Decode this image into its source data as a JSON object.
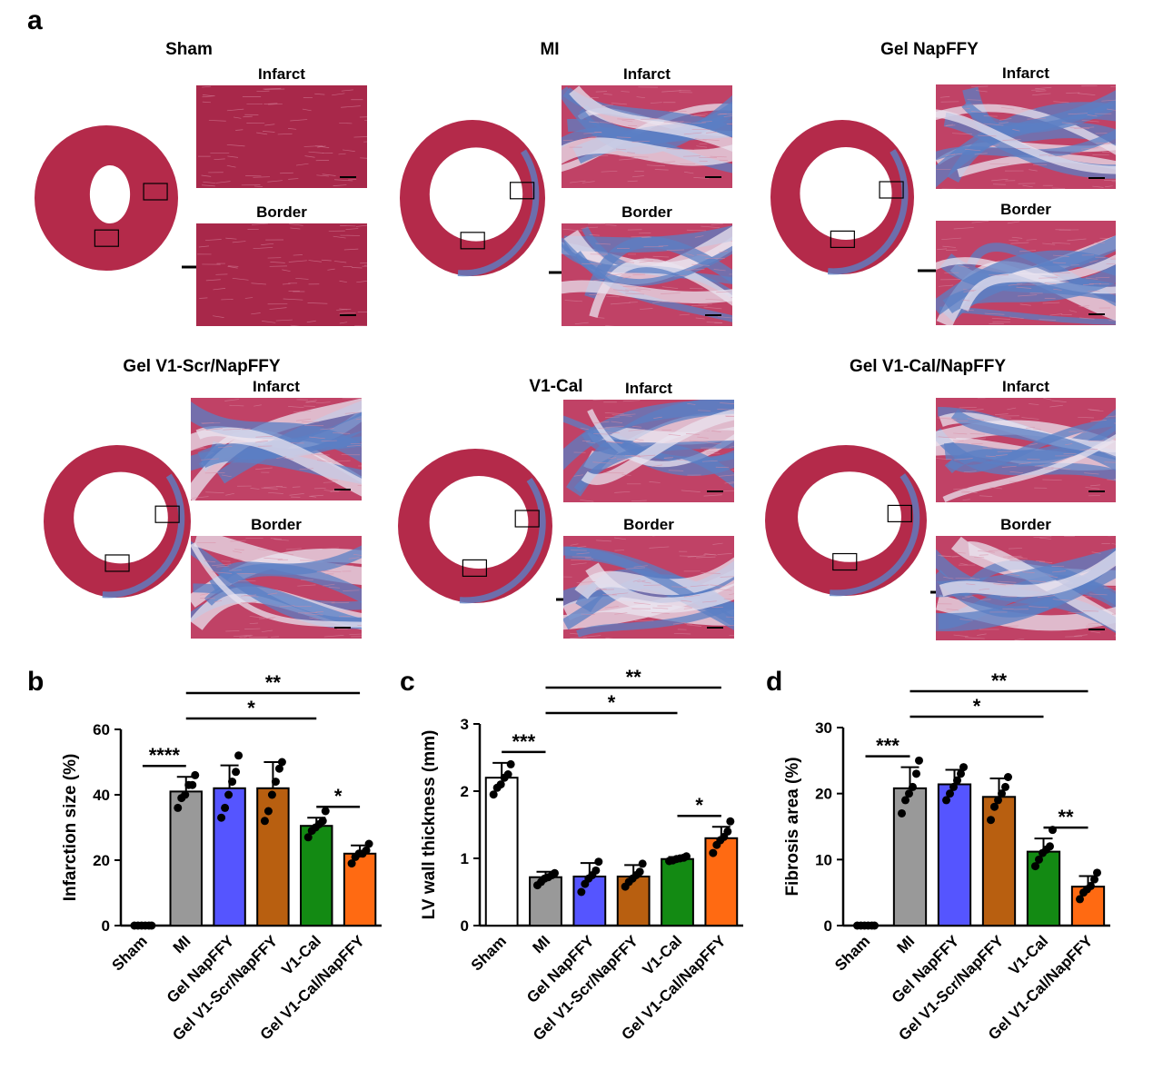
{
  "panel_a": {
    "letter": "a",
    "groups": [
      {
        "title": "Sham",
        "infarct_label": "Infarct",
        "border_label": "Border",
        "stain": "healthy"
      },
      {
        "title": "MI",
        "infarct_label": "Infarct",
        "border_label": "Border",
        "stain": "fibrotic"
      },
      {
        "title": "Gel NapFFY",
        "infarct_label": "Infarct",
        "border_label": "Border",
        "stain": "fibrotic"
      },
      {
        "title": "Gel V1-Scr/NapFFY",
        "infarct_label": "Infarct",
        "border_label": "Border",
        "stain": "fibrotic"
      },
      {
        "title": "V1-Cal",
        "infarct_label": "Infarct",
        "border_label": "Border",
        "stain": "fibrotic"
      },
      {
        "title": "Gel V1-Cal/NapFFY",
        "infarct_label": "Infarct",
        "border_label": "Border",
        "stain": "partial"
      }
    ]
  },
  "colors": {
    "Sham": "#ffffff",
    "MI": "#999999",
    "Gel NapFFY": "#5555ff",
    "Gel V1-Scr/NapFFY": "#b85f10",
    "V1-Cal": "#138a13",
    "Gel V1-Cal/NapFFY": "#ff6a12",
    "tissue_red": "#b42a4a",
    "fibrosis_blue": "#5b7fc4"
  },
  "chart_data": [
    {
      "letter": "b",
      "type": "bar",
      "ylabel": "Infarction size (%)",
      "ylim": [
        0,
        60
      ],
      "yticks": [
        0,
        20,
        40,
        60
      ],
      "categories": [
        "Sham",
        "MI",
        "Gel NapFFY",
        "Gel V1-Scr/NapFFY",
        "V1-Cal",
        "Gel V1-Cal/NapFFY"
      ],
      "values": [
        0,
        41,
        42,
        42,
        30.5,
        22
      ],
      "errors": [
        0,
        4.5,
        7,
        8,
        2.5,
        2.5
      ],
      "points": [
        [
          0,
          0,
          0,
          0,
          0,
          0
        ],
        [
          36,
          39,
          40,
          43,
          43,
          46
        ],
        [
          33,
          36,
          40,
          44,
          47,
          52
        ],
        [
          32,
          35,
          40,
          44,
          48,
          50
        ],
        [
          27,
          29,
          30,
          31,
          32,
          35
        ],
        [
          19,
          21,
          22,
          22,
          23,
          25
        ]
      ],
      "significance": [
        {
          "from": 0,
          "to": 1,
          "label": "****"
        },
        {
          "from": 1,
          "to": 5,
          "label": "**"
        },
        {
          "from": 1,
          "to": 4,
          "label": "*"
        },
        {
          "from": 4,
          "to": 5,
          "label": "*"
        }
      ]
    },
    {
      "letter": "c",
      "type": "bar",
      "ylabel": "LV wall thickness (mm)",
      "ylim": [
        0,
        3
      ],
      "yticks": [
        0,
        1,
        2,
        3
      ],
      "categories": [
        "Sham",
        "MI",
        "Gel NapFFY",
        "Gel V1-Scr/NapFFY",
        "V1-Cal",
        "Gel V1-Cal/NapFFY"
      ],
      "values": [
        2.2,
        0.72,
        0.73,
        0.73,
        0.99,
        1.3
      ],
      "errors": [
        0.22,
        0.08,
        0.2,
        0.17,
        0.03,
        0.17
      ],
      "points": [
        [
          1.95,
          2.05,
          2.1,
          2.2,
          2.25,
          2.4
        ],
        [
          0.6,
          0.65,
          0.7,
          0.72,
          0.75,
          0.78
        ],
        [
          0.5,
          0.62,
          0.7,
          0.75,
          0.82,
          0.95
        ],
        [
          0.58,
          0.65,
          0.7,
          0.75,
          0.8,
          0.92
        ],
        [
          0.96,
          0.97,
          0.99,
          1.0,
          1.01,
          1.03
        ],
        [
          1.08,
          1.2,
          1.27,
          1.32,
          1.4,
          1.55
        ]
      ],
      "significance": [
        {
          "from": 0,
          "to": 1,
          "label": "***"
        },
        {
          "from": 1,
          "to": 5,
          "label": "**"
        },
        {
          "from": 4,
          "to": 5,
          "label": "*"
        },
        {
          "from": 1,
          "to": 4,
          "label": "*"
        }
      ]
    },
    {
      "letter": "d",
      "type": "bar",
      "ylabel": "Fibrosis area (%)",
      "ylim": [
        0,
        30
      ],
      "yticks": [
        0,
        10,
        20,
        30
      ],
      "categories": [
        "Sham",
        "MI",
        "Gel NapFFY",
        "Gel V1-Scr/NapFFY",
        "V1-Cal",
        "Gel V1-Cal/NapFFY"
      ],
      "values": [
        0,
        20.8,
        21.4,
        19.5,
        11.2,
        5.9
      ],
      "errors": [
        0,
        3.2,
        2.2,
        2.8,
        2.0,
        1.6
      ],
      "points": [
        [
          0,
          0,
          0,
          0,
          0,
          0
        ],
        [
          17,
          19,
          20,
          21,
          23,
          25
        ],
        [
          19,
          20,
          21,
          22,
          23,
          24
        ],
        [
          16,
          18,
          19,
          20,
          21,
          22.5
        ],
        [
          9,
          10,
          11,
          11.5,
          12,
          14.5
        ],
        [
          4,
          5,
          5.5,
          6,
          7,
          8
        ]
      ],
      "significance": [
        {
          "from": 0,
          "to": 1,
          "label": "***"
        },
        {
          "from": 1,
          "to": 5,
          "label": "**"
        },
        {
          "from": 1,
          "to": 4,
          "label": "*"
        },
        {
          "from": 4,
          "to": 5,
          "label": "**"
        }
      ]
    }
  ]
}
